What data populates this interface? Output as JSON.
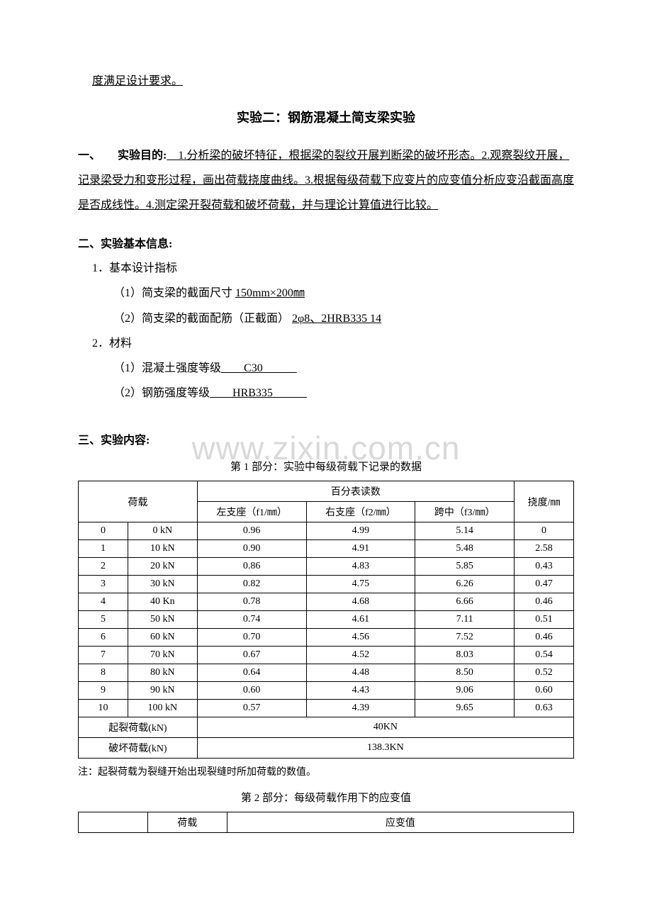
{
  "topLine": "度满足设计要求。",
  "title": "实验二：钢筋混凝土简支梁实验",
  "purpose": {
    "label": "一、　　实验目的:",
    "text": "　1.分析梁的破坏特征，根据梁的裂纹开展判断梁的破坏形态。2.观察裂纹开展，记录梁受力和变形过程，画出荷载挠度曲线。3.根据每级荷载下应变片的应变值分析应变沿截面高度是否成线性。4.测定梁开裂荷载和破坏荷载，并与理论计算值进行比较。"
  },
  "basicInfo": {
    "label": "二、实验基本信息:",
    "item1": {
      "label": "1．基本设计指标",
      "sub1_prefix": "（1）简支梁的截面尺寸 ",
      "sub1_value": "  150mm×200㎜  ",
      "sub2_prefix": "（2）简支梁的截面配筋（正截面） ",
      "sub2_value": "   2φ8、2HRB335   14               "
    },
    "item2": {
      "label": "2．材料",
      "sub1_prefix": "（1）混凝土强度等级",
      "sub1_value": "　　C30　　　",
      "sub2_prefix": "（2）钢筋强度等级",
      "sub2_value": "　　HRB335　　　"
    }
  },
  "contentLabel": "三、实验内容:",
  "table1": {
    "title": "第 1 部分：实验中每级荷载下记录的数据",
    "headers": {
      "load": "荷载",
      "dial": "百分表读数",
      "deflection": "挠度/㎜",
      "left": "左支座（f1/㎜）",
      "right": "右支座（f2/㎜）",
      "mid": "跨中（f3/㎜）"
    },
    "rows": [
      [
        "0",
        "0 kN",
        "0.96",
        "4.99",
        "5.14",
        "0"
      ],
      [
        "1",
        "10 kN",
        "0.90",
        "4.91",
        "5.48",
        "2.58"
      ],
      [
        "2",
        "20 kN",
        "0.86",
        "4.83",
        "5.85",
        "0.43"
      ],
      [
        "3",
        "30 kN",
        "0.82",
        "4.75",
        "6.26",
        "0.47"
      ],
      [
        "4",
        "40 Kn",
        "0.78",
        "4.68",
        "6.66",
        "0.46"
      ],
      [
        "5",
        "50 kN",
        "0.74",
        "4.61",
        "7.11",
        "0.51"
      ],
      [
        "6",
        "60 kN",
        "0.70",
        "4.56",
        "7.52",
        "0.46"
      ],
      [
        "7",
        "70 kN",
        "0.67",
        "4.52",
        "8.03",
        "0.54"
      ],
      [
        "8",
        "80 kN",
        "0.64",
        "4.48",
        "8.50",
        "0.52"
      ],
      [
        "9",
        "90 kN",
        "0.60",
        "4.43",
        "9.06",
        "0.60"
      ],
      [
        "10",
        "100 kN",
        "0.57",
        "4.39",
        "9.65",
        "0.63"
      ]
    ],
    "crackLoad": {
      "label": "起裂荷载(kN)",
      "value": "40KN"
    },
    "failLoad": {
      "label": "破坏荷载(kN)",
      "value": "138.3KN"
    },
    "note": "注：起裂荷载为裂缝开始出现裂缝时所加荷载的数值。"
  },
  "table2": {
    "title": "第 2 部分：每级荷载作用下的应变值",
    "headers": {
      "load": "荷载",
      "strain": "应变值"
    }
  },
  "watermark": "www.zixin.com.cn",
  "colors": {
    "text": "#000000",
    "background": "#ffffff",
    "watermark": "#d9d9d9",
    "border": "#000000"
  },
  "fonts": {
    "body": "SimSun",
    "bodySize": 16,
    "tableSize": 14,
    "titleSize": 18
  }
}
